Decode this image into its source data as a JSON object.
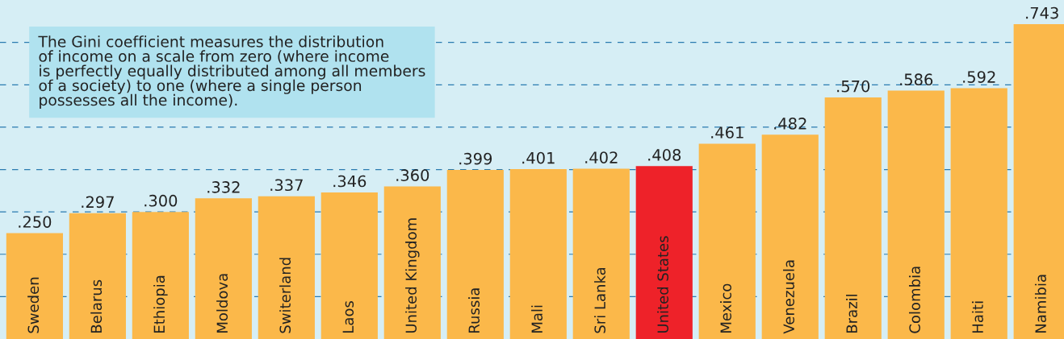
{
  "chart_data": {
    "type": "bar",
    "categories": [
      "Sweden",
      "Belarus",
      "Ethiopia",
      "Moldova",
      "Switerland",
      "Laos",
      "United Kingdom",
      "Russia",
      "Mali",
      "Sri Lanka",
      "United States",
      "Mexico",
      "Venezuela",
      "Brazil",
      "Colombia",
      "Haiti",
      "Namibia"
    ],
    "values": [
      0.25,
      0.297,
      0.3,
      0.332,
      0.337,
      0.346,
      0.36,
      0.399,
      0.401,
      0.402,
      0.408,
      0.461,
      0.482,
      0.57,
      0.586,
      0.592,
      0.743
    ],
    "colors": [
      "#fbb84a",
      "#fbb84a",
      "#fbb84a",
      "#fbb84a",
      "#fbb84a",
      "#fbb84a",
      "#fbb84a",
      "#fbb84a",
      "#fbb84a",
      "#fbb84a",
      "#ee2229",
      "#fbb84a",
      "#fbb84a",
      "#fbb84a",
      "#fbb84a",
      "#fbb84a",
      "#fbb84a"
    ],
    "value_labels": [
      ".250",
      ".297",
      ".300",
      ".332",
      ".337",
      ".346",
      ".360",
      ".399",
      ".401",
      ".402",
      ".408",
      ".461",
      ".482",
      ".570",
      ".586",
      ".592",
      ".743"
    ],
    "ylim": [
      0,
      0.8
    ],
    "yticks": [
      {
        "value": 0.1,
        "label": null
      },
      {
        "value": 0.2,
        "label": null
      },
      {
        "value": 0.3,
        "label": null
      },
      {
        "value": 0.4,
        "label": null
      },
      {
        "value": 0.5,
        "label": null
      },
      {
        "value": 0.6,
        "label": null
      },
      {
        "value": 0.7,
        "label": null
      }
    ],
    "grid": "y",
    "annotations": [
      "The Gini coefficient measures the distribution\nof income on a scale from zero (where income\nis perfectly equally distributed among all members\nof a society) to one (where a single person\npossesses all the income)."
    ]
  }
}
